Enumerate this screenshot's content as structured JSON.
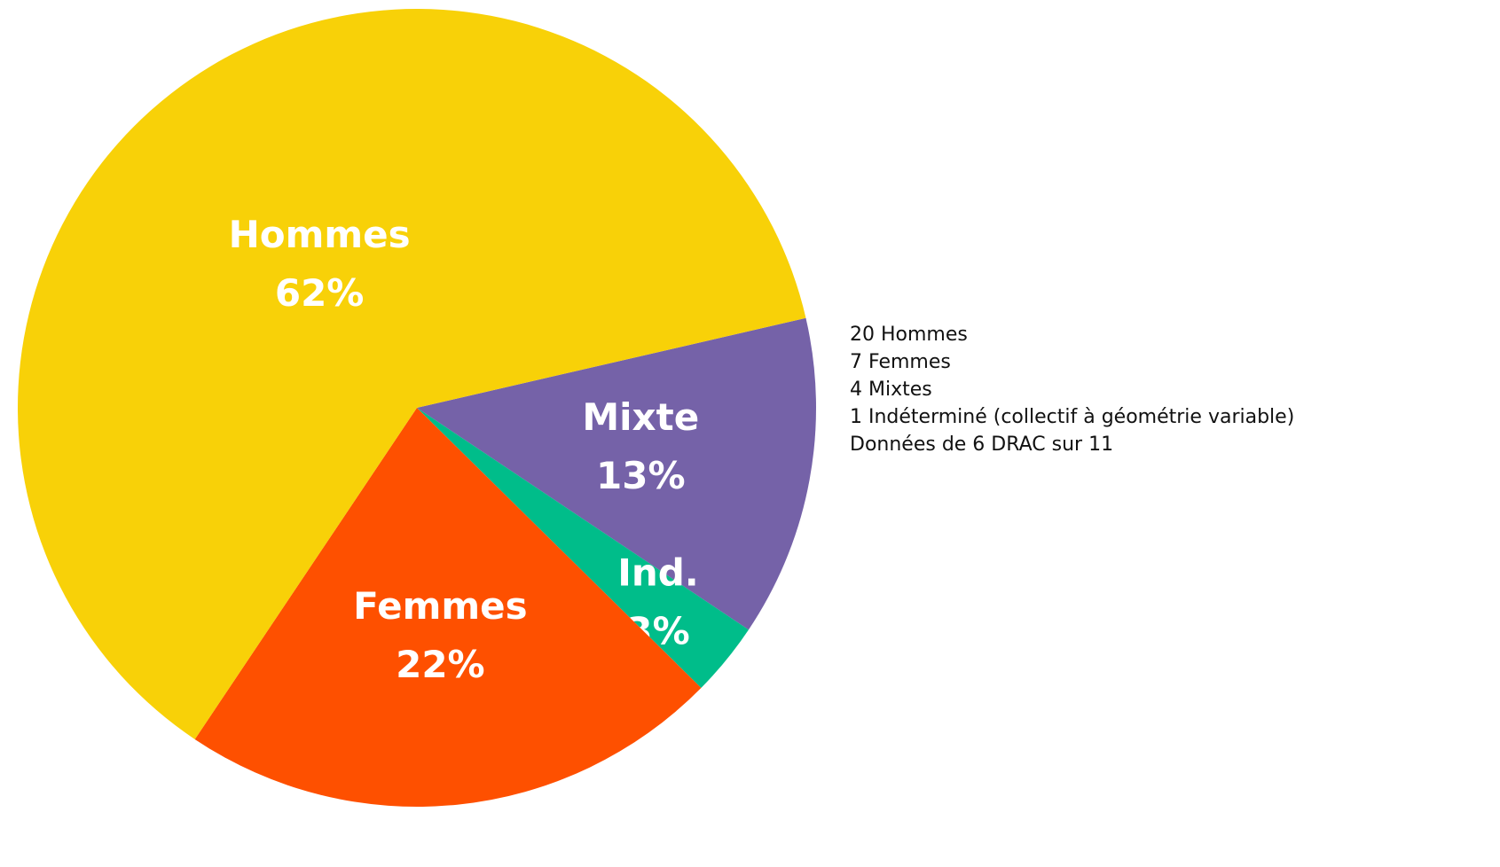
{
  "chart_data": {
    "type": "pie",
    "categories": [
      "Mixte",
      "Ind.",
      "Femmes",
      "Hommes"
    ],
    "values": [
      13,
      3,
      22,
      62
    ],
    "value_labels": [
      "13%",
      "3%",
      "22%",
      "62%"
    ],
    "colors": [
      "#7562a8",
      "#00bd8a",
      "#fe5000",
      "#f8d108"
    ],
    "notes": [
      "20 Hommes",
      "7 Femmes",
      "4 Mixtes",
      "1 Indéterminé (collectif à géométrie variable)",
      "Données de 6 DRAC sur 11"
    ]
  }
}
